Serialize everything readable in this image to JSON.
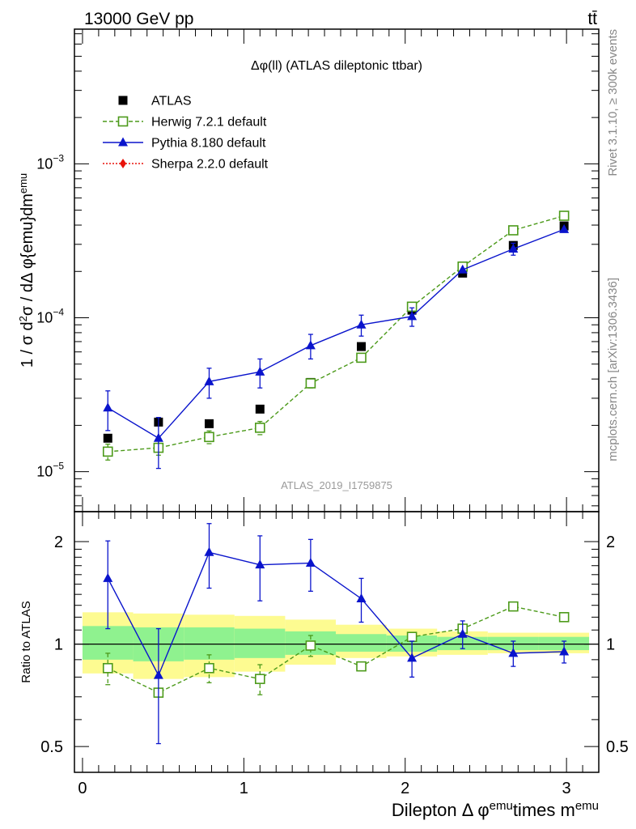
{
  "header": {
    "energy_label": "13000 GeV pp",
    "process_label": "tt̄"
  },
  "side_labels": {
    "rivet": "Rivet 3.1.10, ≥ 300k events",
    "mcplots": "mcplots.cern.ch [arXiv:1306.3436]"
  },
  "chart_data": [
    {
      "type": "scatter",
      "title": "Δφ(ll) (ATLAS dileptonic ttbar)",
      "watermark": "ATLAS_2019_I1759875",
      "ylabel": "1 / σ  d²σ / dΔ φ{emu}dm^emu",
      "yscale": "log",
      "ylim": [
        5.5e-06,
        0.0075
      ],
      "xlim": [
        -0.05,
        3.2
      ],
      "y_ticks": [
        {
          "value": 1e-05,
          "mantissa": "10",
          "exp": "−5"
        },
        {
          "value": 0.0001,
          "mantissa": "10",
          "exp": "−4"
        },
        {
          "value": 0.001,
          "mantissa": "10",
          "exp": "−3"
        }
      ],
      "x": [
        0.157,
        0.471,
        0.785,
        1.1,
        1.414,
        1.728,
        2.042,
        2.356,
        2.67,
        2.985
      ],
      "series": [
        {
          "name": "ATLAS",
          "color": "#000000",
          "marker": "square-filled",
          "line": "none",
          "values": [
            1.65e-05,
            2.1e-05,
            2.05e-05,
            2.55e-05,
            3.8e-05,
            6.5e-05,
            0.000112,
            0.000195,
            0.000295,
            0.000395
          ]
        },
        {
          "name": "Herwig 7.2.1 default",
          "color": "#4c9a1a",
          "marker": "square-open",
          "line": "dashed",
          "values": [
            1.35e-05,
            1.43e-05,
            1.68e-05,
            1.93e-05,
            3.75e-05,
            5.5e-05,
            0.000118,
            0.000215,
            0.00037,
            0.00046
          ],
          "errors": [
            1.6e-06,
            1.5e-06,
            1.6e-06,
            1.9e-06,
            2.5e-06,
            0,
            0,
            0,
            0,
            0
          ]
        },
        {
          "name": "Pythia 8.180 default",
          "color": "#0a14cc",
          "marker": "triangle-filled",
          "line": "solid",
          "values": [
            2.6e-05,
            1.65e-05,
            3.85e-05,
            4.45e-05,
            6.6e-05,
            9e-05,
            0.000102,
            0.000205,
            0.00028,
            0.000375
          ],
          "errors": [
            7.5e-06,
            6e-06,
            8.5e-06,
            9.5e-06,
            1.2e-05,
            1.4e-05,
            1.4e-05,
            0,
            2.5e-05,
            0
          ]
        },
        {
          "name": "Sherpa 2.2.0 default",
          "color": "#e8120a",
          "marker": "diamond-filled",
          "line": "dotted",
          "values": []
        }
      ]
    },
    {
      "type": "scatter",
      "ylabel": "Ratio to ATLAS",
      "xlabel_main": "Dilepton",
      "xlabel_phi": "Δ φ",
      "xlabel_sup1": "emu",
      "xlabel_mid": "times m",
      "xlabel_sup2": "emu",
      "yscale": "log",
      "ylim": [
        0.42,
        2.45
      ],
      "reference": 1,
      "y_ticks": [
        0.5,
        1,
        2
      ],
      "x_ticks": [
        0,
        1,
        2,
        3
      ],
      "bins": [
        {
          "lo": 0.0,
          "hi": 0.314,
          "band1": [
            0.9,
            1.13
          ],
          "band2": [
            0.82,
            1.24
          ]
        },
        {
          "lo": 0.314,
          "hi": 0.628,
          "band1": [
            0.89,
            1.12
          ],
          "band2": [
            0.79,
            1.23
          ]
        },
        {
          "lo": 0.628,
          "hi": 0.942,
          "band1": [
            0.9,
            1.12
          ],
          "band2": [
            0.8,
            1.22
          ]
        },
        {
          "lo": 0.942,
          "hi": 1.256,
          "band1": [
            0.91,
            1.11
          ],
          "band2": [
            0.83,
            1.21
          ]
        },
        {
          "lo": 1.256,
          "hi": 1.57,
          "band1": [
            0.93,
            1.09
          ],
          "band2": [
            0.87,
            1.18
          ]
        },
        {
          "lo": 1.57,
          "hi": 1.884,
          "band1": [
            0.95,
            1.07
          ],
          "band2": [
            0.91,
            1.14
          ]
        },
        {
          "lo": 1.884,
          "hi": 2.198,
          "band1": [
            0.95,
            1.06
          ],
          "band2": [
            0.92,
            1.11
          ]
        },
        {
          "lo": 2.198,
          "hi": 2.512,
          "band1": [
            0.96,
            1.05
          ],
          "band2": [
            0.93,
            1.09
          ]
        },
        {
          "lo": 2.512,
          "hi": 2.826,
          "band1": [
            0.96,
            1.05
          ],
          "band2": [
            0.94,
            1.08
          ]
        },
        {
          "lo": 2.826,
          "hi": 3.14,
          "band1": [
            0.96,
            1.05
          ],
          "band2": [
            0.94,
            1.08
          ]
        }
      ],
      "x": [
        0.157,
        0.471,
        0.785,
        1.1,
        1.414,
        1.728,
        2.042,
        2.356,
        2.67,
        2.985
      ],
      "series": [
        {
          "name": "Herwig 7.2.1 default",
          "color": "#4c9a1a",
          "marker": "square-open",
          "line": "dashed",
          "values": [
            0.85,
            0.72,
            0.85,
            0.79,
            0.99,
            0.86,
            1.05,
            1.11,
            1.29,
            1.2
          ],
          "errors": [
            0.09,
            0,
            0.08,
            0.08,
            0.07,
            0,
            0,
            0,
            0,
            0
          ]
        },
        {
          "name": "Pythia 8.180 default",
          "color": "#0a14cc",
          "marker": "triangle-filled",
          "line": "solid",
          "values": [
            1.56,
            0.81,
            1.86,
            1.71,
            1.73,
            1.36,
            0.91,
            1.07,
            0.94,
            0.95
          ],
          "errors": [
            0.45,
            0.3,
            0.4,
            0.37,
            0.3,
            0.2,
            0.11,
            0.1,
            0.08,
            0.07
          ]
        }
      ]
    }
  ]
}
